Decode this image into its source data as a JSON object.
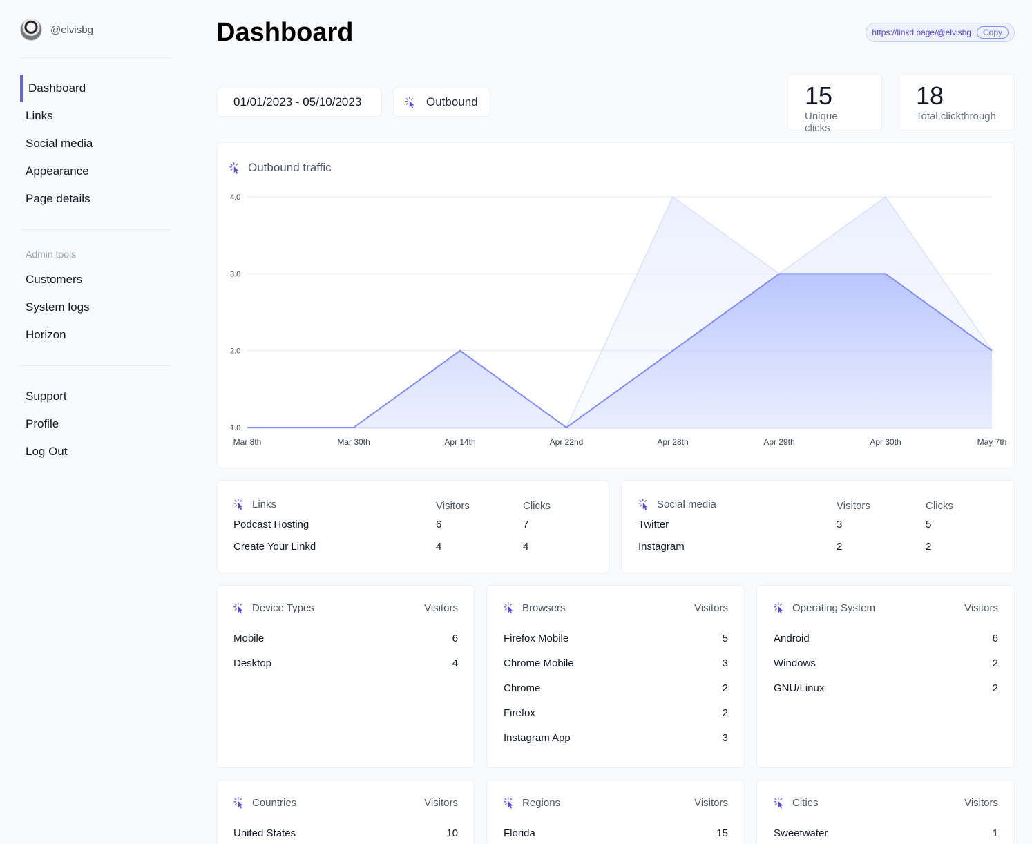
{
  "user": {
    "handle": "@elvisbg"
  },
  "nav": {
    "main": [
      "Dashboard",
      "Links",
      "Social media",
      "Appearance",
      "Page details"
    ],
    "admin_label": "Admin tools",
    "admin": [
      "Customers",
      "System logs",
      "Horizon"
    ],
    "footer": [
      "Support",
      "Profile",
      "Log Out"
    ]
  },
  "header": {
    "title": "Dashboard",
    "url": "https://linkd.page/@elvisbg",
    "copy_label": "Copy"
  },
  "filters": {
    "date_range": "01/01/2023 - 05/10/2023",
    "mode": "Outbound"
  },
  "stats": [
    {
      "value": "15",
      "label": "Unique clicks"
    },
    {
      "value": "18",
      "label": "Total clickthrough"
    }
  ],
  "chart_data": {
    "type": "area",
    "title": "Outbound traffic",
    "categories": [
      "Mar 8th",
      "Mar 30th",
      "Apr 14th",
      "Apr 22nd",
      "Apr 28th",
      "Apr 29th",
      "Apr 30th",
      "May 7th"
    ],
    "series": [
      {
        "values": [
          1,
          1,
          2,
          1,
          2,
          3,
          3,
          2
        ]
      },
      {
        "values": [
          1,
          1,
          1,
          1,
          4,
          3,
          4,
          2
        ]
      }
    ],
    "yticks": [
      "1.0",
      "2.0",
      "3.0",
      "4.0"
    ],
    "ylim": [
      1,
      4
    ],
    "grid": true,
    "colors": [
      "#818cf8",
      "#c7d2fe"
    ]
  },
  "links_table": {
    "title": "Links",
    "col_visitors": "Visitors",
    "col_clicks": "Clicks",
    "rows": [
      {
        "name": "Podcast Hosting",
        "visitors": "6",
        "clicks": "7"
      },
      {
        "name": "Create Your Linkd",
        "visitors": "4",
        "clicks": "4"
      }
    ]
  },
  "social_table": {
    "title": "Social media",
    "col_visitors": "Visitors",
    "col_clicks": "Clicks",
    "rows": [
      {
        "name": "Twitter",
        "visitors": "3",
        "clicks": "5"
      },
      {
        "name": "Instagram",
        "visitors": "2",
        "clicks": "2"
      }
    ]
  },
  "device_types": {
    "title": "Device Types",
    "col": "Visitors",
    "rows": [
      [
        "Mobile",
        "6"
      ],
      [
        "Desktop",
        "4"
      ]
    ]
  },
  "browsers": {
    "title": "Browsers",
    "col": "Visitors",
    "rows": [
      [
        "Firefox Mobile",
        "5"
      ],
      [
        "Chrome Mobile",
        "3"
      ],
      [
        "Chrome",
        "2"
      ],
      [
        "Firefox",
        "2"
      ],
      [
        "Instagram App",
        "3"
      ]
    ]
  },
  "os": {
    "title": "Operating System",
    "col": "Visitors",
    "rows": [
      [
        "Android",
        "6"
      ],
      [
        "Windows",
        "2"
      ],
      [
        "GNU/Linux",
        "2"
      ]
    ]
  },
  "countries": {
    "title": "Countries",
    "col": "Visitors",
    "rows": [
      [
        "United States",
        "10"
      ]
    ]
  },
  "regions": {
    "title": "Regions",
    "col": "Visitors",
    "rows": [
      [
        "Florida",
        "15"
      ]
    ]
  },
  "cities": {
    "title": "Cities",
    "col": "Visitors",
    "rows": [
      [
        "Sweetwater",
        "1"
      ]
    ]
  },
  "colors": {
    "accent": "#6366f1",
    "accent_light": "#c7d2fe"
  },
  "icons": {
    "card": "cursor-click-icon"
  }
}
